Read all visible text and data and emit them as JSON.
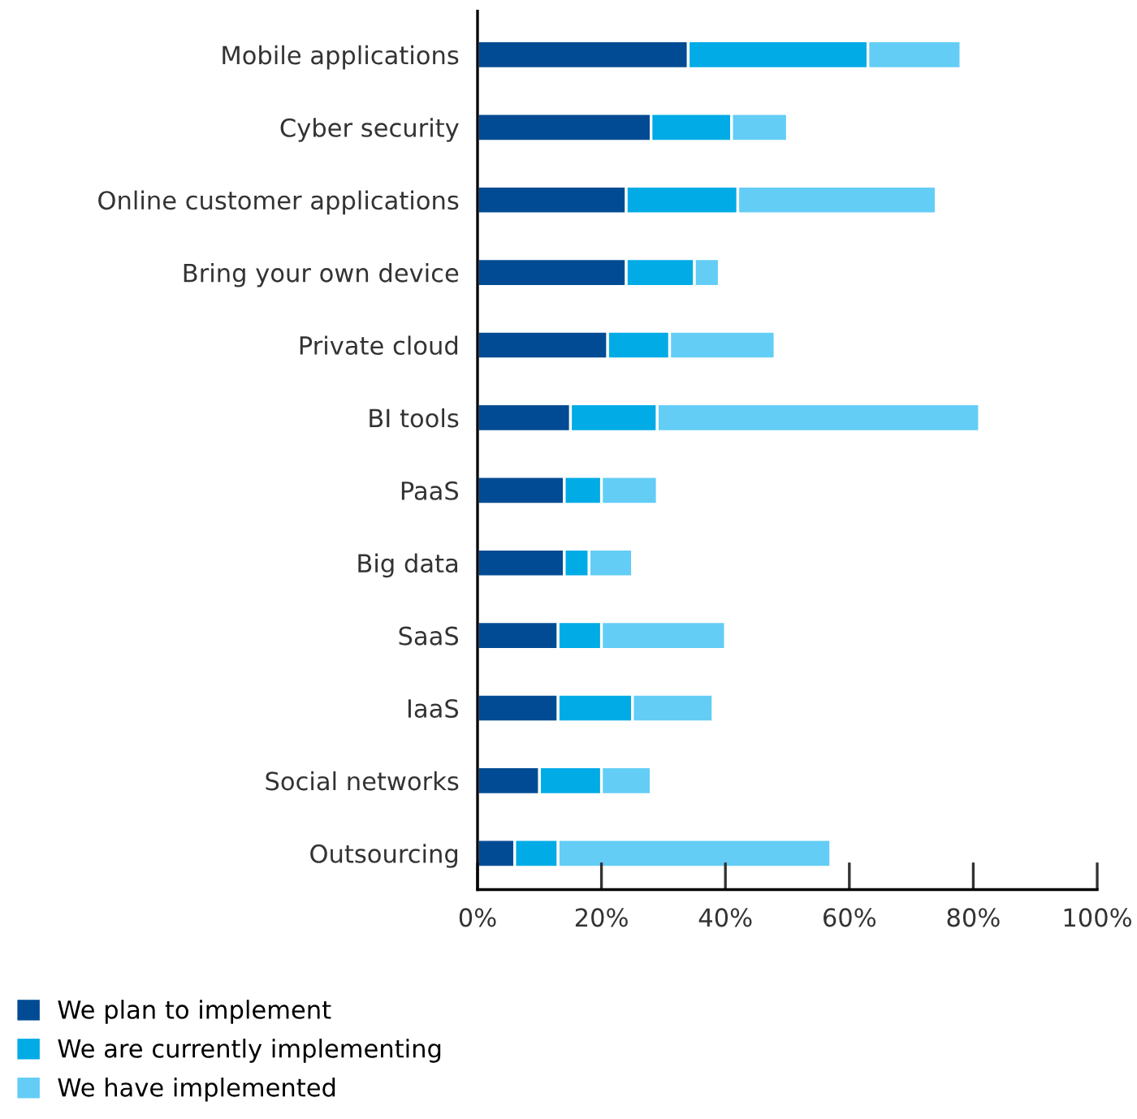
{
  "chart_data": {
    "type": "bar",
    "orientation": "horizontal",
    "stacked": true,
    "categories": [
      "Mobile applications",
      "Cyber security",
      "Online customer applications",
      "Bring your own device",
      "Private cloud",
      "BI tools",
      "PaaS",
      "Big data",
      "SaaS",
      "IaaS",
      "Social networks",
      "Outsourcing"
    ],
    "series": [
      {
        "name": "We plan to implement",
        "color": "#004b93",
        "values": [
          34,
          28,
          24,
          24,
          21,
          15,
          14,
          14,
          13,
          13,
          10,
          6
        ]
      },
      {
        "name": "We are currently implementing",
        "color": "#00abe6",
        "values": [
          29,
          13,
          18,
          11,
          10,
          14,
          6,
          4,
          7,
          12,
          10,
          7
        ]
      },
      {
        "name": "We have implemented",
        "color": "#63cdf5",
        "values": [
          15,
          9,
          32,
          4,
          17,
          52,
          9,
          7,
          20,
          13,
          8,
          44
        ]
      }
    ],
    "xlim": [
      0,
      100
    ],
    "xticks": [
      {
        "value": 0,
        "label": "0%"
      },
      {
        "value": 20,
        "label": "20%"
      },
      {
        "value": 40,
        "label": "40%"
      },
      {
        "value": 60,
        "label": "60%"
      },
      {
        "value": 80,
        "label": "80%"
      },
      {
        "value": 100,
        "label": "100%"
      }
    ],
    "legend": "bottom left",
    "grid": false
  }
}
